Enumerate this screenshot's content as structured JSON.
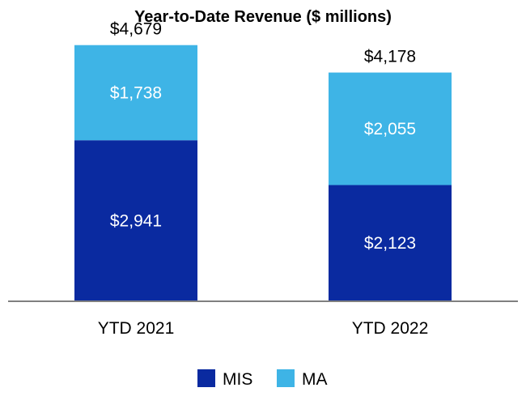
{
  "chart_data": {
    "type": "bar",
    "stacked": true,
    "title": "Year-to-Date Revenue ($ millions)",
    "categories": [
      "YTD 2021",
      "YTD 2022"
    ],
    "series": [
      {
        "name": "MIS",
        "values": [
          2941,
          2123
        ],
        "labels": [
          "$2,941",
          "$2,123"
        ],
        "color": "#0a2aa0"
      },
      {
        "name": "MA",
        "values": [
          1738,
          2055
        ],
        "labels": [
          "$1,738",
          "$2,055"
        ],
        "color": "#3eb4e6"
      }
    ],
    "totals": [
      4679,
      4178
    ],
    "total_labels": [
      "$4,679",
      "$4,178"
    ],
    "ylim": [
      0,
      5000
    ],
    "xlabel": "",
    "ylabel": "",
    "grid": false,
    "legend_position": "bottom",
    "axis_color": "#808080"
  }
}
